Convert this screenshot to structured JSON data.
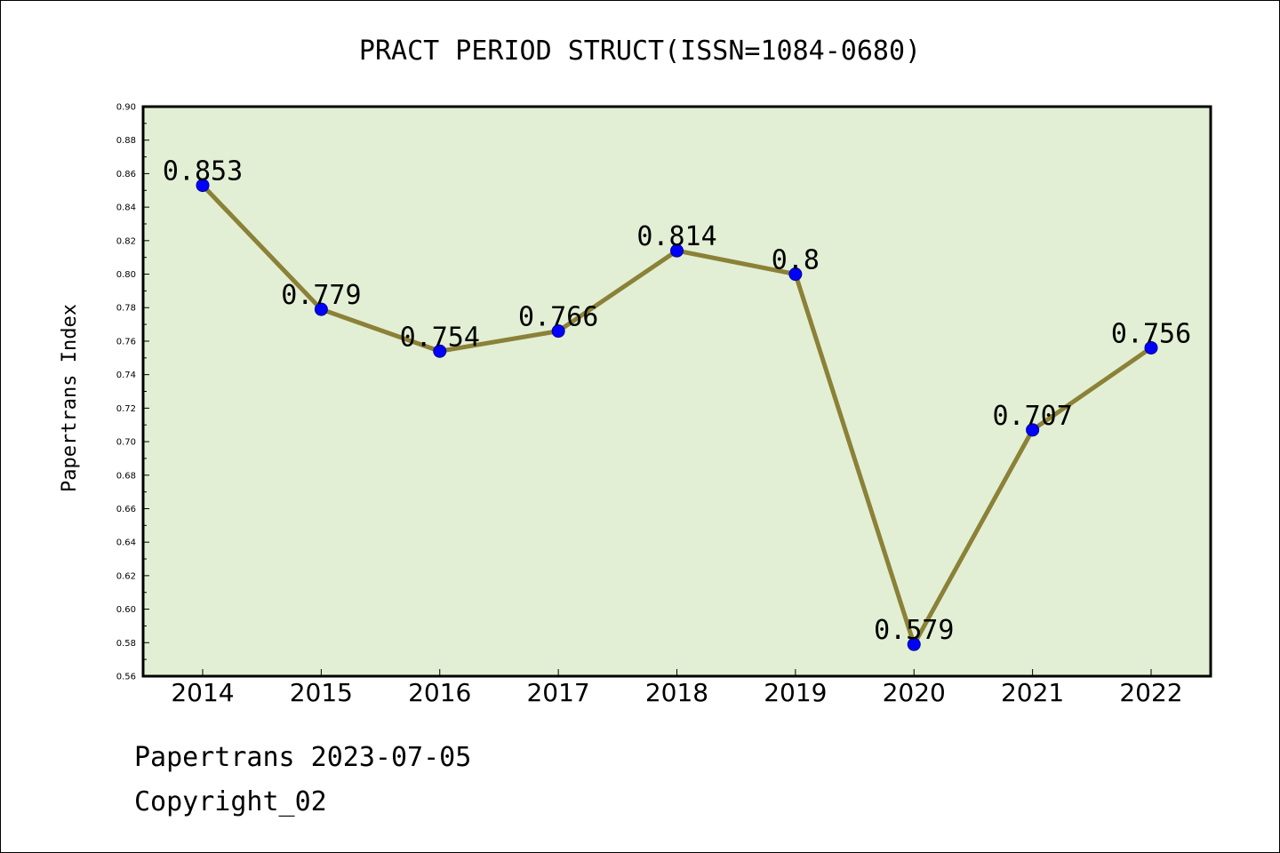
{
  "chart_data": {
    "type": "line",
    "title": "PRACT PERIOD STRUCT(ISSN=1084-0680)",
    "xlabel": "",
    "ylabel": "Papertrans Index",
    "categories": [
      "2014",
      "2015",
      "2016",
      "2017",
      "2018",
      "2019",
      "2020",
      "2021",
      "2022"
    ],
    "series": [
      {
        "values": [
          0.853,
          0.779,
          0.754,
          0.766,
          0.814,
          0.8,
          0.579,
          0.707,
          0.756
        ]
      }
    ],
    "data_labels": [
      "0.853",
      "0.779",
      "0.754",
      "0.766",
      "0.814",
      "0.8",
      "0.579",
      "0.707",
      "0.756"
    ],
    "ylim": [
      0.56,
      0.9
    ],
    "yticks": [
      "0.56",
      "0.58",
      "0.60",
      "0.62",
      "0.64",
      "0.66",
      "0.68",
      "0.70",
      "0.72",
      "0.74",
      "0.76",
      "0.78",
      "0.80",
      "0.82",
      "0.84",
      "0.86",
      "0.88",
      "0.90"
    ],
    "grid": false,
    "colors": {
      "plot_background": "#e2efd4",
      "line": "#8b8137",
      "marker": "#0000ff"
    }
  },
  "footer": {
    "line1": "Papertrans 2023-07-05",
    "line2": "Copyright_02"
  }
}
